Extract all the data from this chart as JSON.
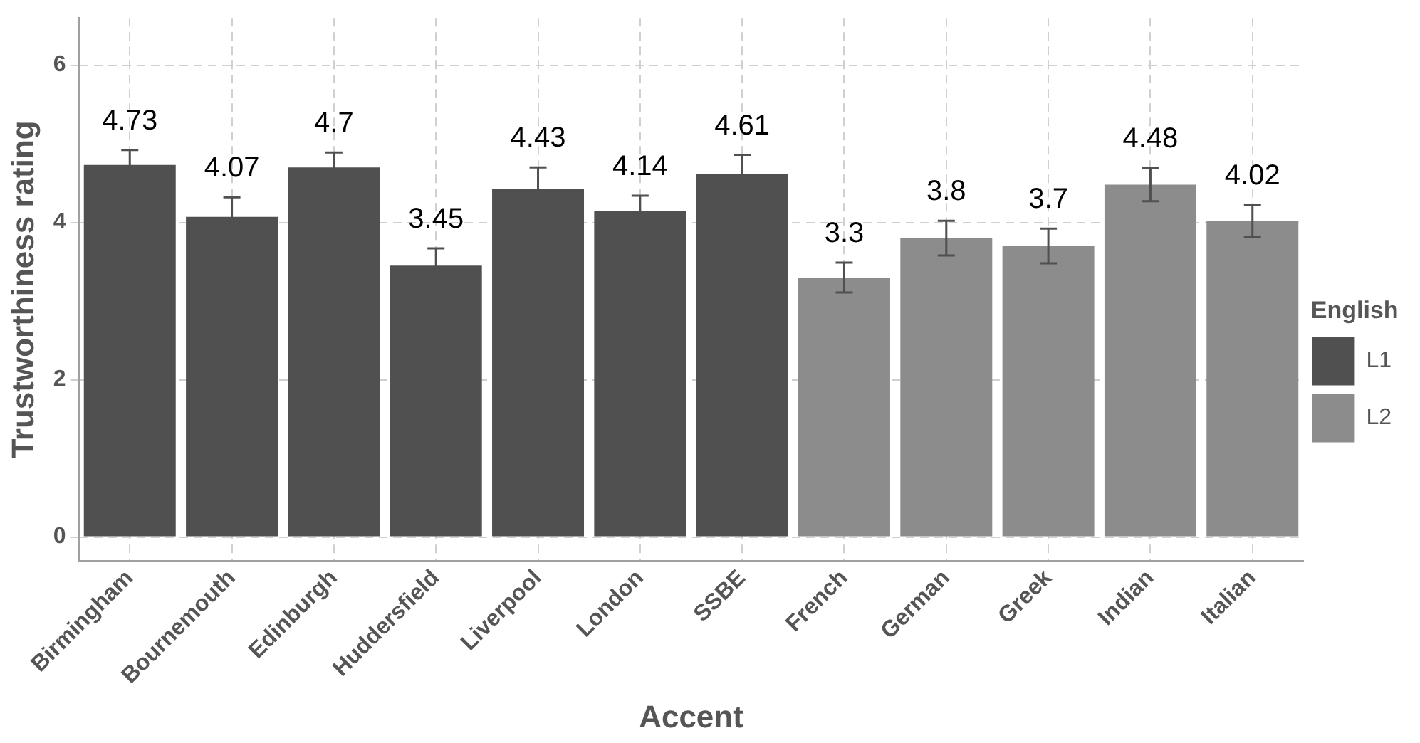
{
  "chart_data": {
    "type": "bar",
    "xlabel": "Accent",
    "ylabel": "Trustworthiness rating",
    "legend_title": "English",
    "categories": [
      "Birmingham",
      "Bournemouth",
      "Edinburgh",
      "Huddersfield",
      "Liverpool",
      "London",
      "SSBE",
      "French",
      "German",
      "Greek",
      "Indian",
      "Italian"
    ],
    "series": [
      {
        "name": "L1",
        "color": "#505050",
        "values": [
          4.73,
          4.07,
          4.7,
          3.45,
          4.43,
          4.14,
          4.61,
          null,
          null,
          null,
          null,
          null
        ],
        "errors": [
          0.19,
          0.25,
          0.19,
          0.22,
          0.27,
          0.2,
          0.25,
          null,
          null,
          null,
          null,
          null
        ]
      },
      {
        "name": "L2",
        "color": "#8c8c8c",
        "values": [
          null,
          null,
          null,
          null,
          null,
          null,
          null,
          3.3,
          3.8,
          3.7,
          4.48,
          4.02
        ],
        "errors": [
          null,
          null,
          null,
          null,
          null,
          null,
          null,
          0.19,
          0.22,
          0.22,
          0.21,
          0.2
        ]
      }
    ],
    "ylim": [
      -0.3,
      6.6
    ],
    "yticks": [
      0,
      2,
      4,
      6
    ],
    "grid": true,
    "legend": "right",
    "data_labels": true
  }
}
